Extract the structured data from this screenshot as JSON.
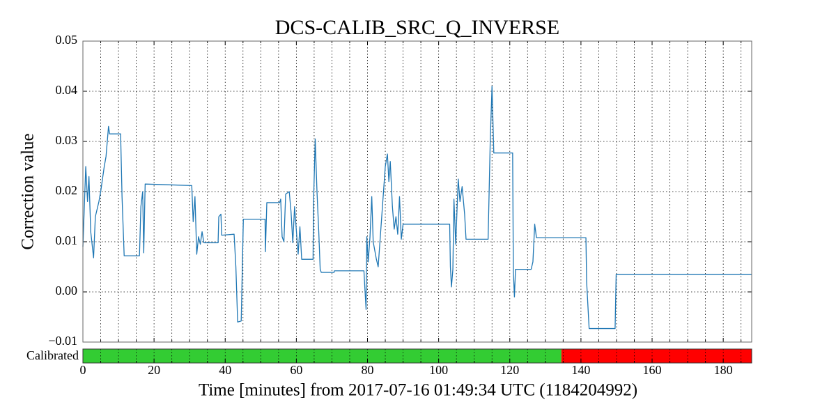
{
  "chart_data": {
    "type": "line",
    "title": "DCS-CALIB_SRC_Q_INVERSE",
    "xlabel": "Time [minutes] from 2017-07-16 01:49:34 UTC (1184204992)",
    "ylabel": "Correction value",
    "color": "#1f77b4",
    "x": [
      0,
      0.8,
      1.3,
      1.7,
      2.2,
      3,
      3.5,
      4.5,
      5,
      6,
      6.5,
      7.2,
      7.5,
      10.6,
      11,
      11.6,
      15.9,
      16.3,
      16.8,
      17.1,
      17.5,
      30.6,
      31,
      31.5,
      32,
      32.5,
      33,
      33.5,
      34,
      38,
      38.2,
      38.8,
      39,
      42.5,
      43,
      43.5,
      44.5,
      45.1,
      51.2,
      51.3,
      51.7,
      55.3,
      55.6,
      56,
      56.5,
      57,
      58,
      58.5,
      59,
      59.5,
      60.5,
      61,
      61.5,
      64.7,
      64.8,
      65.3,
      65.8,
      66.3,
      66.7,
      67,
      70.6,
      70.7,
      79,
      79.2,
      79.6,
      79.8,
      80.2,
      80.7,
      81.2,
      81.6,
      82.5,
      83,
      84,
      85,
      85.6,
      86,
      86.4,
      87,
      87.5,
      88,
      88.5,
      89,
      89.5,
      90,
      103.1,
      103.3,
      103.6,
      104,
      104.3,
      104.8,
      105.5,
      106,
      106.6,
      107.3,
      107.7,
      113.9,
      114.5,
      115,
      115.5,
      120.8,
      121,
      121.3,
      121.6,
      126,
      126.5,
      127,
      127.5,
      141.4,
      141.6,
      142.3,
      149.6,
      149.9,
      188
    ],
    "values": [
      0.009,
      0.025,
      0.018,
      0.023,
      0.012,
      0.0068,
      0.015,
      0.018,
      0.02,
      0.025,
      0.027,
      0.033,
      0.0315,
      0.0315,
      0.019,
      0.0072,
      0.0072,
      0.017,
      0.02,
      0.0078,
      0.0215,
      0.0212,
      0.014,
      0.019,
      0.0075,
      0.011,
      0.0095,
      0.012,
      0.0098,
      0.0098,
      0.015,
      0.0155,
      0.0113,
      0.0115,
      0.005,
      -0.006,
      -0.0058,
      0.0145,
      0.0145,
      0.008,
      0.0178,
      0.0178,
      0.0185,
      0.011,
      0.01,
      0.0195,
      0.02,
      0.016,
      0.0098,
      0.017,
      0.0075,
      0.013,
      0.0065,
      0.0065,
      0.017,
      0.0305,
      0.02,
      0.012,
      0.0045,
      0.0039,
      0.0039,
      0.0042,
      0.0042,
      0.0015,
      -0.0035,
      0.011,
      0.006,
      0.011,
      0.019,
      0.01,
      0.0065,
      0.005,
      0.015,
      0.025,
      0.0275,
      0.022,
      0.026,
      0.017,
      0.0125,
      0.015,
      0.0115,
      0.019,
      0.0105,
      0.0135,
      0.0135,
      0.005,
      0.001,
      0.0045,
      0.0185,
      0.0095,
      0.0225,
      0.018,
      0.021,
      0.0155,
      0.0105,
      0.0105,
      0.03,
      0.041,
      0.0277,
      0.0277,
      0.004,
      -0.001,
      0.0045,
      0.0045,
      0.006,
      0.0135,
      0.0108,
      0.0108,
      0.002,
      -0.0073,
      -0.0073,
      0.0035,
      0.0035
    ],
    "xlim": [
      0,
      188
    ],
    "ylim": [
      -0.01,
      0.05
    ],
    "xticks": [
      0,
      20,
      40,
      60,
      80,
      100,
      120,
      140,
      160,
      180
    ],
    "minor_xticks": [
      5,
      10,
      15,
      25,
      30,
      35,
      45,
      50,
      55,
      65,
      70,
      75,
      85,
      90,
      95,
      105,
      110,
      115,
      125,
      130,
      135,
      145,
      150,
      155,
      165,
      170,
      175,
      185
    ],
    "yticks": [
      {
        "value": -0.01,
        "label": "−0.01"
      },
      {
        "value": 0,
        "label": "0.00"
      },
      0.01,
      0.02,
      0.03,
      0.04,
      0.05
    ],
    "grid": true,
    "state_bar": {
      "label": "Calibrated",
      "segments": [
        {
          "start": 0,
          "end": 134.5,
          "color": "#33cc33"
        },
        {
          "start": 134.5,
          "end": 188,
          "color": "#ff0000"
        }
      ]
    }
  }
}
